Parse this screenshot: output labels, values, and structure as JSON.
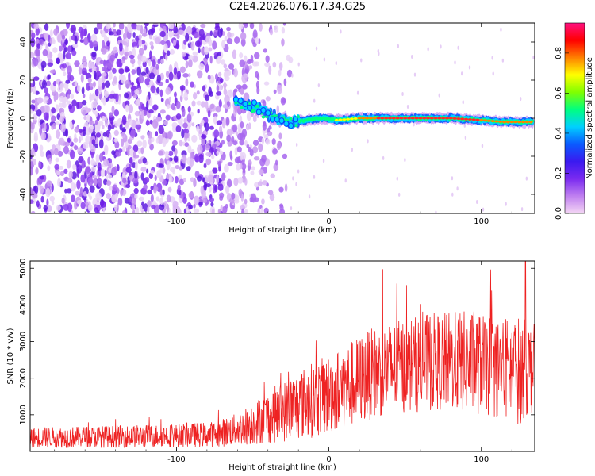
{
  "title": "C2E4.2026.076.17.34.G25",
  "colors": {
    "snr_line": "#ee2222",
    "frame": "#000000",
    "background": "#ffffff"
  },
  "chart_data": [
    {
      "type": "heatmap",
      "xlabel": "Height of straight line (km)",
      "ylabel": "Frequency (Hz)",
      "xlim": [
        -196,
        135
      ],
      "ylim": [
        -50,
        50
      ],
      "x_ticks": [
        -100,
        0,
        100
      ],
      "y_ticks": [
        -40,
        -20,
        0,
        20,
        40
      ],
      "colorbar": {
        "label": "Normalized spectral amplitude",
        "range": [
          0.0,
          0.95
        ],
        "ticks": [
          0.0,
          0.2,
          0.4,
          0.6,
          0.8
        ],
        "tick_labels": [
          "0.0",
          "0.2",
          "0.4",
          "0.6",
          "0.8"
        ],
        "colormap": [
          "#f4d6f4",
          "#c080f0",
          "#7a2af0",
          "#3a1af0",
          "#0a5aff",
          "#00d0ff",
          "#00ff80",
          "#80ff00",
          "#ffff00",
          "#ff8000",
          "#ff0000",
          "#ff1080"
        ]
      },
      "noise_region_x": [
        -196,
        -25
      ],
      "signal_track": {
        "description": "narrow band near 0 Hz",
        "points": [
          {
            "x": -61,
            "y": 8
          },
          {
            "x": -55,
            "y": 7
          },
          {
            "x": -48,
            "y": 5
          },
          {
            "x": -40,
            "y": 2
          },
          {
            "x": -33,
            "y": 0
          },
          {
            "x": -25,
            "y": -2
          },
          {
            "x": -15,
            "y": -1
          },
          {
            "x": -5,
            "y": 0
          },
          {
            "x": 5,
            "y": -1
          },
          {
            "x": 20,
            "y": 0
          },
          {
            "x": 40,
            "y": 0
          },
          {
            "x": 60,
            "y": 0
          },
          {
            "x": 80,
            "y": 0
          },
          {
            "x": 100,
            "y": -1
          },
          {
            "x": 115,
            "y": -2
          },
          {
            "x": 134,
            "y": -2
          }
        ],
        "peak_amplitude": 0.9
      }
    },
    {
      "type": "line",
      "xlabel": "Height of straight line (km)",
      "ylabel": "SNR (10 * v/v)",
      "xlim": [
        -196,
        135
      ],
      "ylim": [
        0,
        5200
      ],
      "x_ticks": [
        -100,
        0,
        100
      ],
      "y_ticks": [
        1000,
        2000,
        3000,
        4000,
        5000
      ],
      "series": [
        {
          "name": "SNR",
          "envelope": [
            {
              "x": -196,
              "mean": 380,
              "spread": 280
            },
            {
              "x": -150,
              "mean": 400,
              "spread": 300
            },
            {
              "x": -100,
              "mean": 430,
              "spread": 320
            },
            {
              "x": -75,
              "mean": 470,
              "spread": 350
            },
            {
              "x": -60,
              "mean": 600,
              "spread": 450
            },
            {
              "x": -45,
              "mean": 850,
              "spread": 650
            },
            {
              "x": -30,
              "mean": 1100,
              "spread": 850
            },
            {
              "x": -15,
              "mean": 1350,
              "spread": 1000
            },
            {
              "x": 0,
              "mean": 1550,
              "spread": 1100
            },
            {
              "x": 15,
              "mean": 1850,
              "spread": 1200
            },
            {
              "x": 30,
              "mean": 2150,
              "spread": 1250
            },
            {
              "x": 50,
              "mean": 2350,
              "spread": 1300
            },
            {
              "x": 70,
              "mean": 2450,
              "spread": 1350
            },
            {
              "x": 90,
              "mean": 2450,
              "spread": 1400
            },
            {
              "x": 110,
              "mean": 2300,
              "spread": 1400
            },
            {
              "x": 125,
              "mean": 2200,
              "spread": 1500
            },
            {
              "x": 135,
              "mean": 2300,
              "spread": 1200
            }
          ],
          "peak": {
            "x": 129,
            "y": 5200
          }
        }
      ]
    }
  ]
}
